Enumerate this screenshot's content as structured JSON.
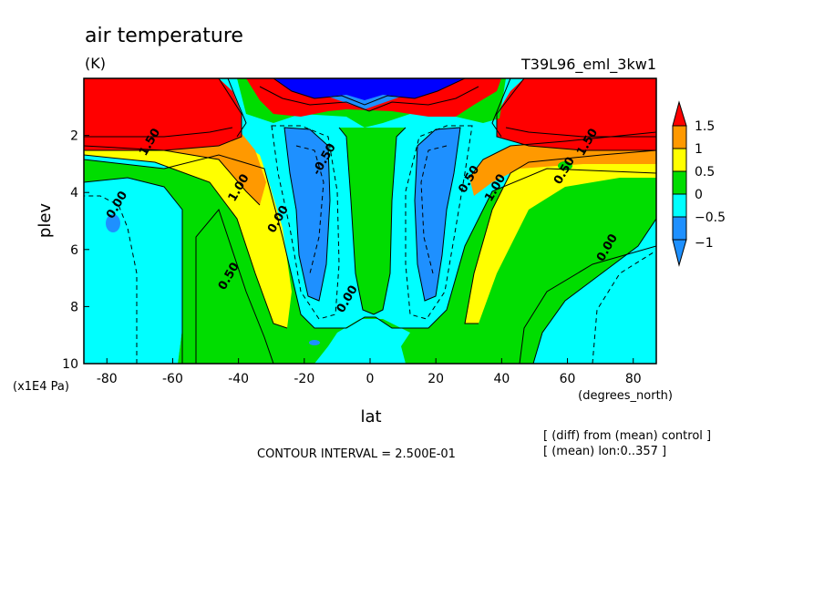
{
  "chart_data": {
    "type": "filled-contour",
    "title": "air temperature",
    "units": "(K)",
    "experiment": "T39L96_eml_3kw1",
    "xlabel": "lat",
    "x_units": "(degrees_north)",
    "ylabel": "plev",
    "y_units": "(x1E4 Pa)",
    "xlim": [
      -87,
      87
    ],
    "ylim": [
      10,
      0
    ],
    "x_ticks": [
      -80,
      -60,
      -40,
      -20,
      0,
      20,
      40,
      60,
      80
    ],
    "y_ticks": [
      2,
      4,
      6,
      8,
      10
    ],
    "x_tick_labels": [
      "-80",
      "-60",
      "-40",
      "-20",
      "0",
      "20",
      "40",
      "60",
      "80"
    ],
    "y_tick_labels": [
      "2",
      "4",
      "6",
      "8",
      "10"
    ],
    "contour_interval_text": "CONTOUR INTERVAL = 2.500E-01",
    "notes": [
      "[ (diff) from (mean) control ]",
      "[ (mean) lon:0..357 ]"
    ],
    "colorbar": {
      "labels": [
        "1.5",
        "1",
        "0.5",
        "0",
        "−0.5",
        "−1"
      ],
      "colors": {
        "gt_1_5": "#ff0000",
        "1_to_1_5": "#ff9900",
        "0_5_to_1": "#ffff00",
        "0_to_0_5": "#00dd00",
        "m0_5_to_0": "#00ffff",
        "m1_to_m0_5": "#1e90ff",
        "lt_m1": "#0000ff"
      }
    },
    "contour_labels": [
      {
        "text": "0.00",
        "lat": -76,
        "p": 4.5
      },
      {
        "text": "0.50",
        "lat": -42,
        "p": 7.0
      },
      {
        "text": "1.00",
        "lat": -39,
        "p": 3.9
      },
      {
        "text": "0.00",
        "lat": -27,
        "p": 5.0
      },
      {
        "text": "-0.50",
        "lat": -13,
        "p": 2.9
      },
      {
        "text": "0.00",
        "lat": -6,
        "p": 7.8
      },
      {
        "text": "1.50",
        "lat": -66,
        "p": 2.3
      },
      {
        "text": "0.50",
        "lat": 31,
        "p": 3.6
      },
      {
        "text": "1.00",
        "lat": 39,
        "p": 3.9
      },
      {
        "text": "0.50",
        "lat": 60,
        "p": 3.3
      },
      {
        "text": "0.00",
        "lat": 73,
        "p": 6.0
      },
      {
        "text": "1.50",
        "lat": 67,
        "p": 2.3
      }
    ]
  }
}
